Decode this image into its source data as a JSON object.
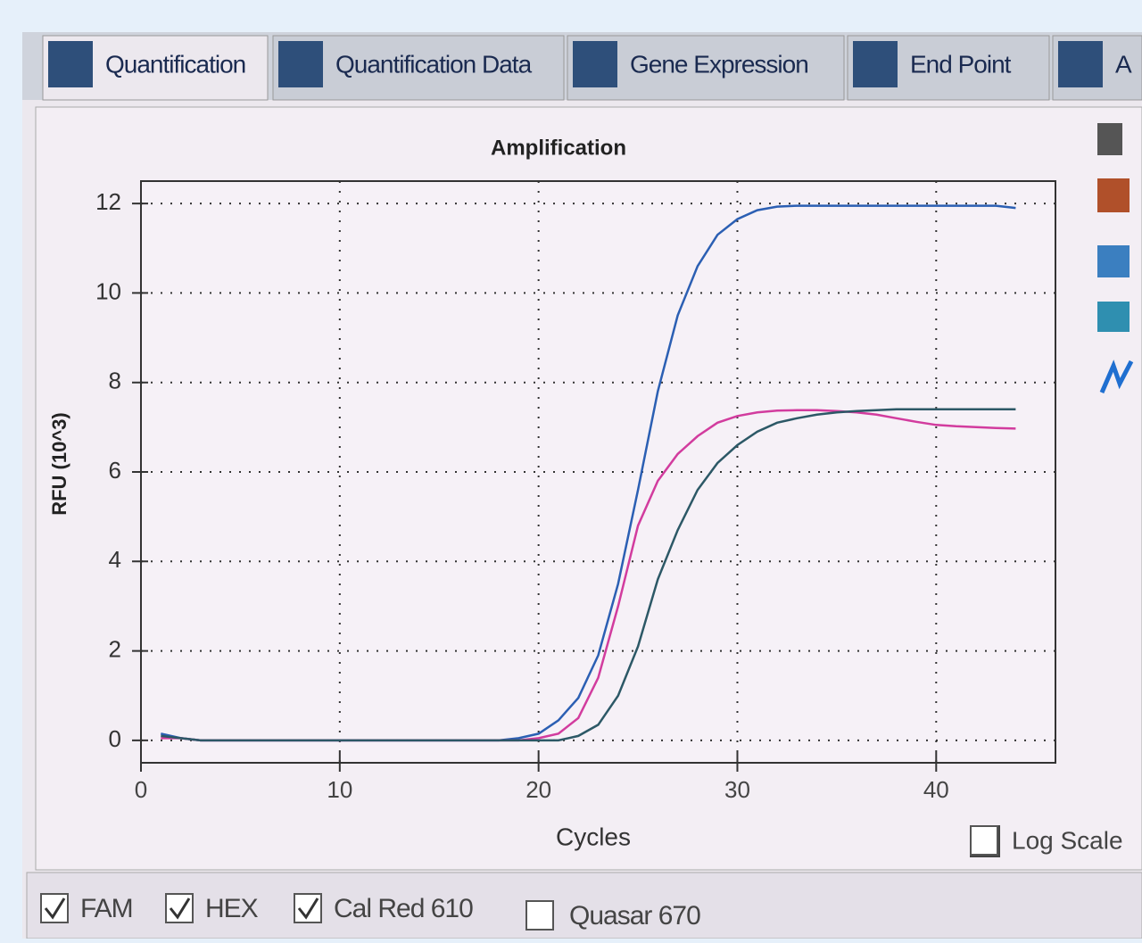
{
  "ui": {
    "tabs": [
      "Quantification",
      "Quantification Data",
      "Gene Expression",
      "End Point",
      "A"
    ],
    "active_tab": 0,
    "log_scale_label": "Log Scale",
    "extra_channel": {
      "name": "Quasar 670",
      "checked": false
    }
  },
  "chart_data": {
    "type": "line",
    "title": "Amplification",
    "x_label": "Cycles",
    "y_label": "RFU (10^3)",
    "x": [
      1,
      2,
      3,
      4,
      5,
      6,
      7,
      8,
      9,
      10,
      11,
      12,
      13,
      14,
      15,
      16,
      17,
      18,
      19,
      20,
      21,
      22,
      23,
      24,
      25,
      26,
      27,
      28,
      29,
      30,
      31,
      32,
      33,
      34,
      35,
      36,
      37,
      38,
      39,
      40,
      41,
      42,
      43,
      44
    ],
    "series": [
      {
        "name": "FAM",
        "checked": true,
        "color": "#2b5fb3",
        "values": [
          0.15,
          0.05,
          0,
          0,
          0,
          0,
          0,
          0,
          0,
          0,
          0,
          0,
          0,
          0,
          0,
          0,
          0,
          0,
          0.05,
          0.15,
          0.45,
          0.95,
          1.9,
          3.5,
          5.6,
          7.8,
          9.5,
          10.6,
          11.3,
          11.65,
          11.85,
          11.93,
          11.95,
          11.95,
          11.95,
          11.95,
          11.95,
          11.95,
          11.95,
          11.95,
          11.95,
          11.95,
          11.95,
          11.9
        ]
      },
      {
        "name": "HEX",
        "checked": true,
        "color": "#d23c9e",
        "values": [
          0.05,
          0.05,
          0,
          0,
          0,
          0,
          0,
          0,
          0,
          0,
          0,
          0,
          0,
          0,
          0,
          0,
          0,
          0,
          0,
          0.05,
          0.15,
          0.5,
          1.4,
          3.0,
          4.8,
          5.8,
          6.4,
          6.8,
          7.1,
          7.25,
          7.33,
          7.37,
          7.38,
          7.38,
          7.36,
          7.33,
          7.28,
          7.2,
          7.12,
          7.05,
          7.02,
          7.0,
          6.98,
          6.97
        ]
      },
      {
        "name": "Cal Red 610",
        "checked": true,
        "color": "#2c5866",
        "values": [
          0.1,
          0.05,
          0,
          0,
          0,
          0,
          0,
          0,
          0,
          0,
          0,
          0,
          0,
          0,
          0,
          0,
          0,
          0,
          0,
          0,
          0,
          0.1,
          0.35,
          1.0,
          2.1,
          3.6,
          4.7,
          5.6,
          6.2,
          6.6,
          6.9,
          7.1,
          7.2,
          7.28,
          7.33,
          7.36,
          7.38,
          7.4,
          7.4,
          7.4,
          7.4,
          7.4,
          7.4,
          7.4
        ]
      }
    ],
    "xlim": [
      0,
      46
    ],
    "ylim": [
      -0.5,
      12.5
    ],
    "xticks": [
      0,
      10,
      20,
      30,
      40
    ],
    "yticks": [
      0,
      2,
      4,
      6,
      8,
      10,
      12
    ],
    "grid": true,
    "log_scale": false
  }
}
